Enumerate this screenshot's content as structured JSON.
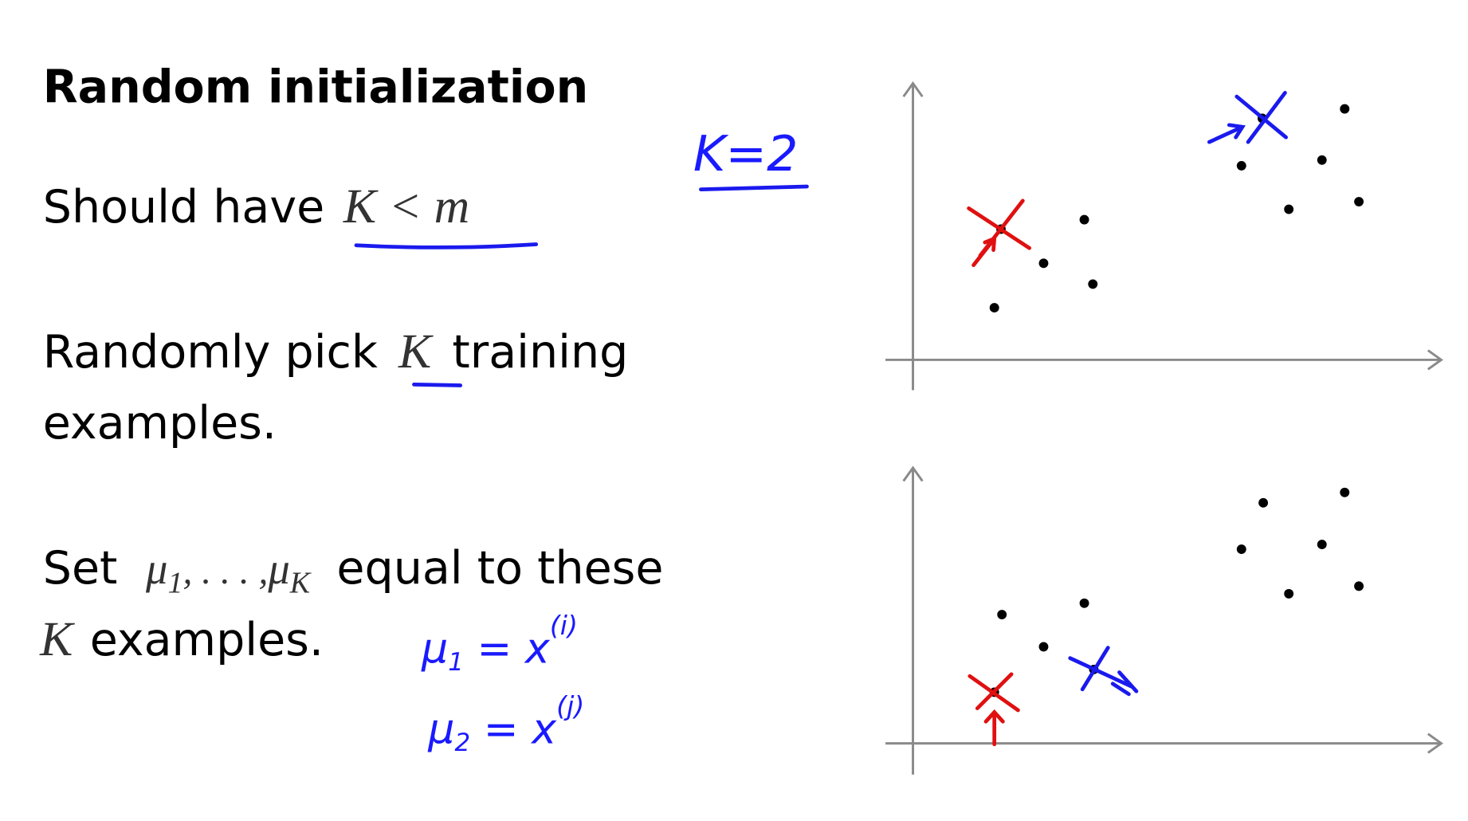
{
  "title": "Random initialization",
  "bullets": [
    {
      "lines": [
        [
          "Should have",
          "K < m"
        ]
      ]
    },
    {
      "lines": [
        [
          "Randomly pick",
          "K",
          "training"
        ],
        [
          "examples."
        ]
      ]
    },
    {
      "lines": [
        [
          "Set",
          "μ",
          "1",
          ", . . . ,",
          "μ",
          "K",
          "equal to these"
        ],
        [
          "K",
          "examples."
        ]
      ]
    }
  ],
  "notes": {
    "k": "K=2",
    "mu1": [
      "μ",
      "1",
      " = x",
      "(i)"
    ],
    "mu2": [
      "μ",
      "2",
      " = x",
      "(j)"
    ]
  }
}
